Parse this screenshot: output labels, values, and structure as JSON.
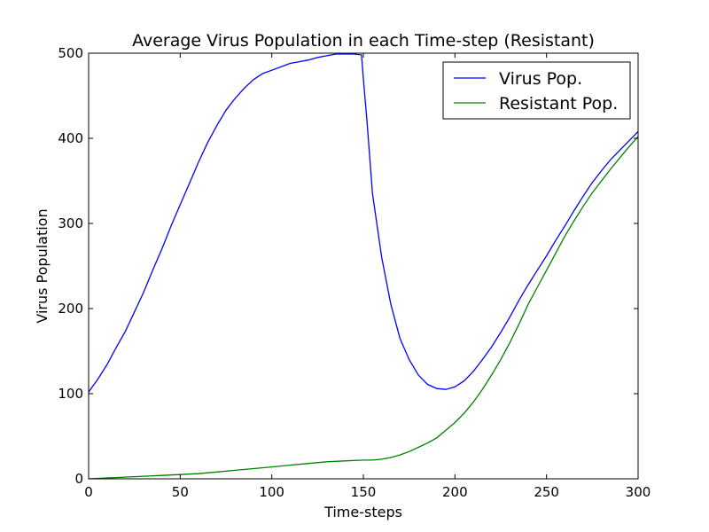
{
  "chart_data": {
    "type": "line",
    "title": "Average Virus Population in each Time-step (Resistant)",
    "xlabel": "Time-steps",
    "ylabel": "Virus Population",
    "xlim": [
      0,
      300
    ],
    "ylim": [
      0,
      500
    ],
    "xticks": [
      0,
      50,
      100,
      150,
      200,
      250,
      300
    ],
    "yticks": [
      0,
      100,
      200,
      300,
      400,
      500
    ],
    "grid": false,
    "legend_position": "top-right",
    "series": [
      {
        "name": "Virus Pop.",
        "color": "#0000ff",
        "x": [
          0,
          5,
          10,
          15,
          20,
          25,
          30,
          35,
          40,
          45,
          50,
          55,
          60,
          65,
          70,
          75,
          80,
          85,
          90,
          95,
          100,
          105,
          110,
          115,
          120,
          125,
          130,
          135,
          140,
          145,
          149,
          150,
          152,
          155,
          160,
          165,
          170,
          175,
          180,
          185,
          190,
          195,
          200,
          205,
          210,
          215,
          220,
          225,
          230,
          235,
          240,
          245,
          250,
          255,
          260,
          265,
          270,
          275,
          280,
          285,
          290,
          295,
          300
        ],
        "y": [
          102,
          117,
          134,
          154,
          173,
          196,
          219,
          245,
          270,
          297,
          322,
          347,
          372,
          395,
          415,
          433,
          447,
          459,
          469,
          476,
          480,
          484,
          488,
          490,
          492,
          495,
          497,
          499,
          499,
          499,
          498,
          470,
          420,
          335,
          260,
          205,
          165,
          140,
          122,
          111,
          106,
          105,
          108,
          115,
          126,
          140,
          155,
          172,
          190,
          210,
          228,
          245,
          262,
          280,
          297,
          315,
          332,
          348,
          362,
          375,
          386,
          397,
          408
        ]
      },
      {
        "name": "Resistant Pop.",
        "color": "#008000",
        "x": [
          0,
          10,
          20,
          30,
          40,
          50,
          60,
          70,
          80,
          90,
          100,
          110,
          120,
          130,
          140,
          150,
          155,
          160,
          165,
          170,
          175,
          180,
          185,
          190,
          195,
          200,
          205,
          210,
          215,
          220,
          225,
          230,
          235,
          240,
          245,
          250,
          255,
          260,
          265,
          270,
          275,
          280,
          285,
          290,
          295,
          300
        ],
        "y": [
          0,
          1,
          2,
          3,
          4,
          5,
          6,
          8,
          10,
          12,
          14,
          16,
          18,
          20,
          21,
          22,
          22,
          23,
          25,
          28,
          32,
          37,
          42,
          48,
          57,
          66,
          77,
          90,
          105,
          122,
          140,
          160,
          182,
          205,
          225,
          245,
          265,
          285,
          303,
          320,
          336,
          350,
          364,
          377,
          390,
          402
        ]
      }
    ]
  }
}
